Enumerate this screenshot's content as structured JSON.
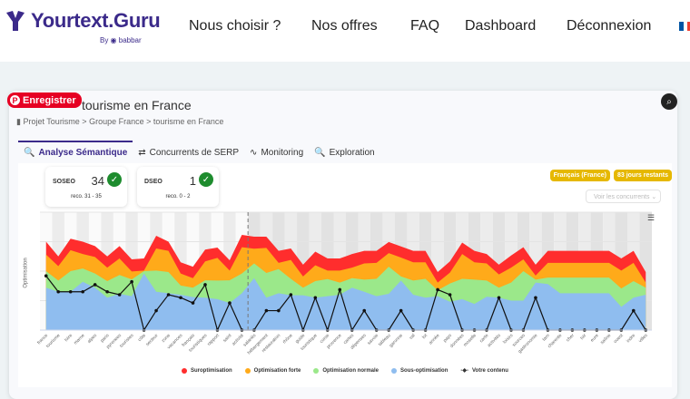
{
  "nav": {
    "logo": "Yourtext.Guru",
    "logo_by": "By ◉ babbar",
    "items": [
      "Nous choisir ?",
      "Nos offres",
      "FAQ",
      "Dashboard",
      "Déconnexion"
    ]
  },
  "pin_button": "Enregistrer",
  "page": {
    "title": "tourisme en France",
    "breadcrumb": "Projet Tourisme > Groupe France > tourisme en France"
  },
  "tabs": [
    {
      "label": "Analyse Sémantique",
      "icon": "🔍"
    },
    {
      "label": "Concurrents de SERP",
      "icon": "⇄"
    },
    {
      "label": "Monitoring",
      "icon": "∿"
    },
    {
      "label": "Exploration",
      "icon": "🔍"
    }
  ],
  "scores": [
    {
      "label": "SOSEO",
      "value": "34",
      "reco": "reco. 31 - 35"
    },
    {
      "label": "DSEO",
      "value": "1",
      "reco": "reco. 0 - 2"
    }
  ],
  "badges": [
    "Français (France)",
    "83 jours restants"
  ],
  "voir_button": "Voir les concurrents ⌄",
  "colors": {
    "sur": "#ff2d2d",
    "forte": "#ffaa1a",
    "normale": "#9be88a",
    "sous": "#8fbdef",
    "contenu": "#111111",
    "badge": "#e6b800",
    "brand": "#3b2a8a"
  },
  "chart_data": {
    "type": "area",
    "ylabel": "Optimisation",
    "ylim": [
      0,
      4
    ],
    "divider_index": 16.5,
    "categories": [
      "france",
      "tourisme",
      "loire",
      "marne",
      "alpes",
      "paris",
      "pyrenees",
      "touristes",
      "côte",
      "secteur",
      "zone",
      "vacances",
      "français",
      "touristiques",
      "rapport",
      "saint",
      "activité",
      "salariés",
      "hébergement",
      "restauration",
      "rhône",
      "guide",
      "touristique",
      "corse",
      "provence",
      "cartes",
      "dépenses",
      "savoie",
      "tableau",
      "garonne",
      "val",
      "lot",
      "année",
      "pays",
      "données",
      "moselle",
      "carte",
      "activités",
      "loisirs",
      "sources",
      "gastronomie",
      "tarn",
      "charente",
      "cher",
      "loir",
      "eure",
      "saône",
      "ouest",
      "indre",
      "villes"
    ],
    "series": [
      {
        "name": "Suroptimisation",
        "color_key": "sur",
        "upper": [
          3.0,
          2.5,
          3.1,
          3.0,
          2.85,
          2.5,
          2.85,
          2.4,
          2.43,
          3.2,
          3.0,
          2.3,
          2.15,
          2.73,
          2.8,
          2.37,
          3.23,
          3.17,
          3.17,
          2.69,
          2.77,
          2.22,
          2.66,
          2.43,
          2.43,
          2.58,
          2.69,
          2.69,
          2.99,
          2.84,
          2.69,
          2.69,
          1.97,
          2.33,
          2.97,
          2.69,
          2.58,
          2.22,
          2.53,
          2.81,
          2.22,
          2.69,
          2.69,
          2.69,
          2.69,
          2.69,
          2.69,
          2.43,
          2.69,
          1.97
        ]
      },
      {
        "name": "Optimisation forte",
        "color_key": "forte",
        "upper": [
          2.56,
          2.17,
          2.71,
          2.58,
          2.48,
          2.12,
          2.43,
          1.99,
          2.02,
          2.77,
          2.69,
          1.92,
          1.76,
          2.33,
          2.45,
          2.02,
          2.81,
          2.76,
          2.79,
          2.28,
          2.38,
          1.82,
          2.2,
          2.02,
          2.02,
          2.12,
          2.26,
          2.28,
          2.61,
          2.46,
          2.3,
          2.3,
          1.61,
          1.95,
          2.58,
          2.3,
          2.26,
          1.89,
          2.12,
          2.4,
          1.85,
          2.28,
          2.28,
          2.28,
          2.28,
          2.28,
          2.28,
          2.02,
          2.28,
          1.61
        ]
      },
      {
        "name": "Optimisation normale",
        "color_key": "normale",
        "upper": [
          2.0,
          1.68,
          2.0,
          2.09,
          1.92,
          1.66,
          1.87,
          1.72,
          2.0,
          2.02,
          1.97,
          1.51,
          1.44,
          1.69,
          1.68,
          1.69,
          1.92,
          2.26,
          1.94,
          2.07,
          1.74,
          1.44,
          1.66,
          1.73,
          1.61,
          1.76,
          1.71,
          1.74,
          2.15,
          1.82,
          1.68,
          1.74,
          1.35,
          1.58,
          1.74,
          1.71,
          1.68,
          1.44,
          1.61,
          2.0,
          1.71,
          1.78,
          1.78,
          1.78,
          1.78,
          1.78,
          1.78,
          1.41,
          1.66,
          1.44
        ]
      },
      {
        "name": "Sous-optimisation",
        "color_key": "sous",
        "upper": [
          1.44,
          1.3,
          1.3,
          1.64,
          1.44,
          1.1,
          1.23,
          1.15,
          1.92,
          1.3,
          1.25,
          1.2,
          1.12,
          1.1,
          1.05,
          0.92,
          1.25,
          1.76,
          1.1,
          1.25,
          1.18,
          1.18,
          1.1,
          1.15,
          1.2,
          1.44,
          1.3,
          1.15,
          1.23,
          1.68,
          1.2,
          1.1,
          1.15,
          0.96,
          1.05,
          0.89,
          1.13,
          1.1,
          1.0,
          1.0,
          1.61,
          1.56,
          1.25,
          1.25,
          1.25,
          1.25,
          1.25,
          0.79,
          1.1,
          1.2
        ]
      }
    ],
    "line": {
      "name": "Votre contenu",
      "color_key": "contenu",
      "values": [
        1.84,
        1.3,
        1.3,
        1.3,
        1.54,
        1.3,
        1.2,
        1.64,
        0,
        0.66,
        1.2,
        1.1,
        0.92,
        1.54,
        0,
        0.92,
        0,
        0,
        0.66,
        0.66,
        1.2,
        0,
        1.1,
        0,
        1.37,
        0,
        0.66,
        0,
        0,
        0.66,
        0,
        0,
        1.37,
        1.2,
        0,
        0,
        0,
        1.1,
        0,
        0,
        1.1,
        0,
        0,
        0,
        0,
        0,
        0,
        0,
        0.66,
        0
      ]
    },
    "legend_position": "bottom"
  }
}
